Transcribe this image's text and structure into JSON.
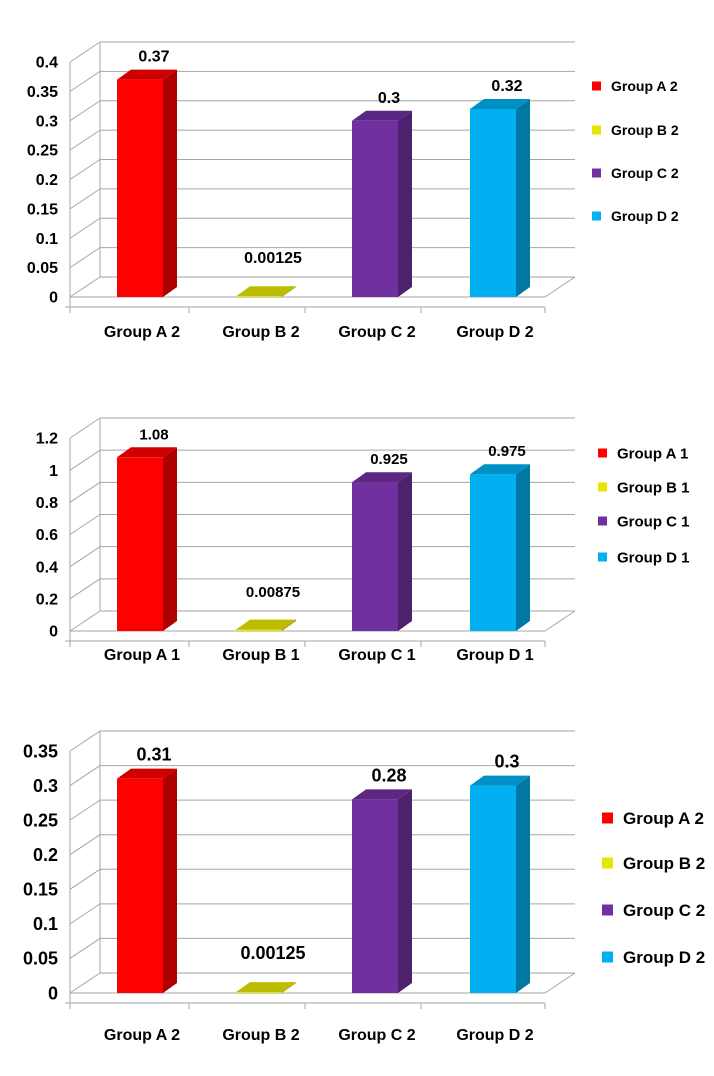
{
  "colors": {
    "red": "#ff0000",
    "yellow": "#e6e600",
    "purple": "#7030a0",
    "cyan": "#00b0f0",
    "grid": "#a6a6a6"
  },
  "chart_data": [
    {
      "type": "bar",
      "style": "3d-column",
      "categories": [
        "Group A 2",
        "Group B 2",
        "Group C 2",
        "Group D 2"
      ],
      "values": [
        0.37,
        0.00125,
        0.3,
        0.32
      ],
      "data_labels": [
        "0.37",
        "0.00125",
        "0.3",
        "0.32"
      ],
      "legend": [
        "Group A 2",
        "Group B 2",
        "Group C 2",
        "Group D 2"
      ],
      "legend_position": "right",
      "ylim": [
        0,
        0.4
      ],
      "yticks": [
        "0",
        "0.05",
        "0.1",
        "0.15",
        "0.2",
        "0.25",
        "0.3",
        "0.35",
        "0.4"
      ],
      "grid": true,
      "title": "",
      "xlabel": "",
      "ylabel": ""
    },
    {
      "type": "bar",
      "style": "3d-column",
      "categories": [
        "Group A 1",
        "Group B 1",
        "Group C 1",
        "Group D 1"
      ],
      "values": [
        1.08,
        0.00875,
        0.925,
        0.975
      ],
      "data_labels": [
        "1.08",
        "0.00875",
        "0.925",
        "0.975"
      ],
      "legend": [
        "Group A 1",
        "Group B 1",
        "Group C 1",
        "Group D 1"
      ],
      "legend_position": "right",
      "ylim": [
        0,
        1.2
      ],
      "yticks": [
        "0",
        "0.2",
        "0.4",
        "0.6",
        "0.8",
        "1",
        "1.2"
      ],
      "grid": true,
      "title": "",
      "xlabel": "",
      "ylabel": ""
    },
    {
      "type": "bar",
      "style": "3d-column",
      "categories": [
        "Group A 2",
        "Group B 2",
        "Group C 2",
        "Group D 2"
      ],
      "values": [
        0.31,
        0.00125,
        0.28,
        0.3
      ],
      "data_labels": [
        "0.31",
        "0.00125",
        "0.28",
        "0.3"
      ],
      "legend": [
        "Group A 2",
        "Group B 2",
        "Group C 2",
        "Group D 2"
      ],
      "legend_position": "right",
      "ylim": [
        0,
        0.35
      ],
      "yticks": [
        "0",
        "0.05",
        "0.1",
        "0.15",
        "0.2",
        "0.25",
        "0.3",
        "0.35"
      ],
      "grid": true,
      "title": "",
      "xlabel": "",
      "ylabel": ""
    }
  ]
}
